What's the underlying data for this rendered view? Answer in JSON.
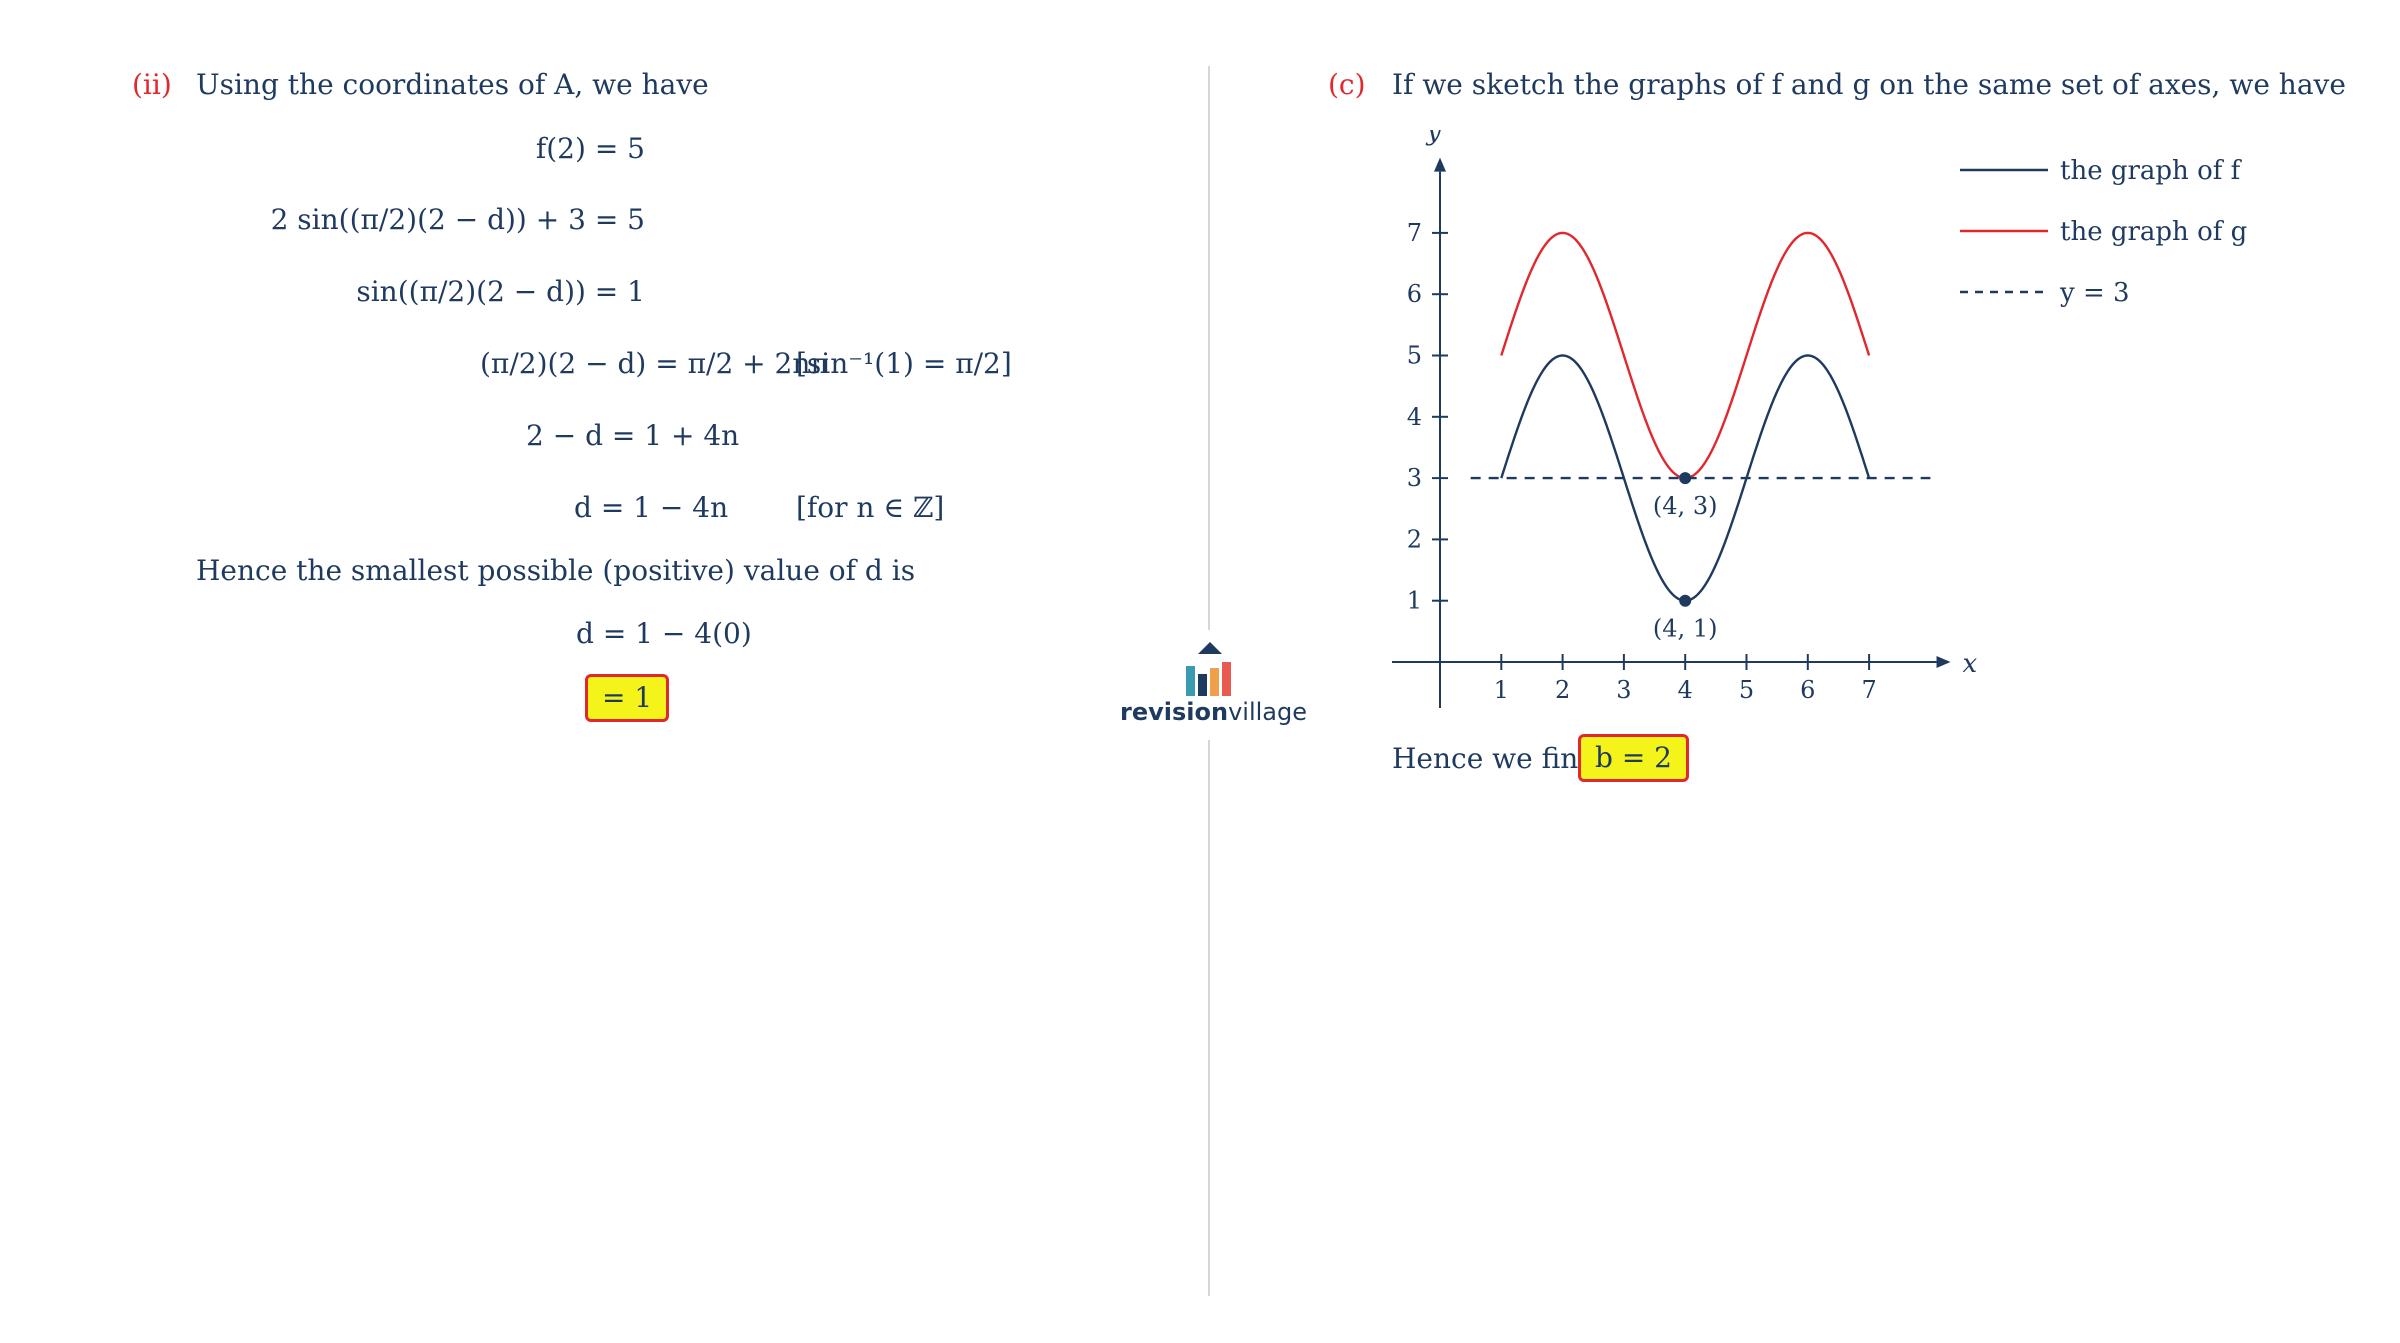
{
  "left": {
    "part_label": "(ii)",
    "intro": "Using the coordinates of A, we have",
    "steps": [
      "f(2) = 5",
      "2 sin((π/2)(2 − d)) + 3 = 5",
      "sin((π/2)(2 − d)) = 1",
      "(π/2)(2 − d) = π/2 + 2nπ",
      "2 − d = 1 + 4n",
      "d = 1 − 4n"
    ],
    "note_sin": "[sin⁻¹(1) = π/2]",
    "note_n": "[for n ∈ ℤ]",
    "conclusion": "Hence the smallest possible (positive) value of d is",
    "final_step": "d = 1 − 4(0)",
    "answer": "= 1"
  },
  "right": {
    "part_label": "(c)",
    "intro": "If we sketch the graphs of f and g on the same set of axes, we have",
    "conclusion": "Hence we find",
    "answer": "b = 2"
  },
  "logo": {
    "bold": "revision",
    "light": "village"
  },
  "colors": {
    "navy": "#1f3a5f",
    "red": "#e0282e",
    "highlight": "#f4f41a"
  },
  "chart_data": {
    "type": "line",
    "xlabel": "x",
    "ylabel": "y",
    "xlim": [
      0,
      8
    ],
    "ylim": [
      0,
      8
    ],
    "x_ticks": [
      1,
      2,
      3,
      4,
      5,
      6,
      7
    ],
    "y_ticks": [
      1,
      2,
      3,
      4,
      5,
      6,
      7
    ],
    "series": [
      {
        "name": "the graph of f",
        "color": "#1f3a5f",
        "domain": [
          1,
          7
        ],
        "formula": "2 sin((π/2)(x − 1)) + 3",
        "dash": false
      },
      {
        "name": "the graph of g",
        "color": "#e0282e",
        "domain": [
          1,
          7
        ],
        "formula": "2 sin((π/2)(x − 1)) + 5",
        "dash": false
      },
      {
        "name": "y = 3",
        "color": "#1f3a5f",
        "domain": [
          0.5,
          8
        ],
        "formula": "3",
        "dash": true
      }
    ],
    "points": [
      {
        "x": 4,
        "y": 3,
        "label": "(4, 3)"
      },
      {
        "x": 4,
        "y": 1,
        "label": "(4, 1)"
      }
    ],
    "legend_position": "top-right"
  }
}
